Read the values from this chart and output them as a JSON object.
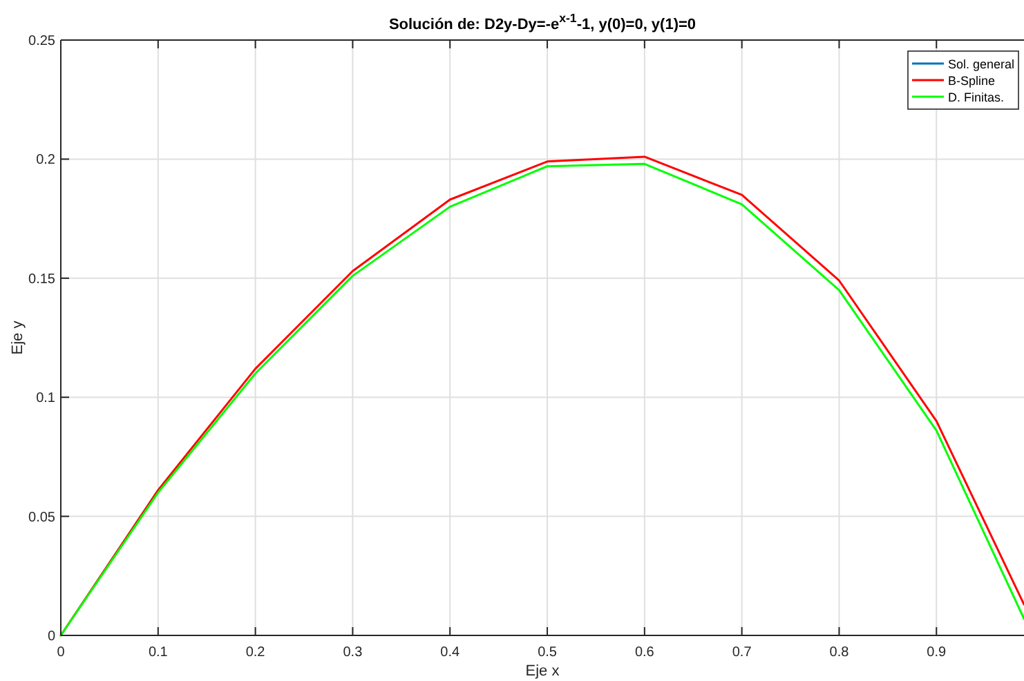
{
  "chart_data": {
    "type": "line",
    "title": "Solución de: D2y-Dy=-e$^{x-1}$-1, y(0)=0, y(1)=0",
    "xlabel": "Eje x",
    "ylabel": "Eje y",
    "x": [
      0,
      0.1,
      0.2,
      0.3,
      0.4,
      0.5,
      0.6,
      0.7,
      0.8,
      0.9,
      0.99
    ],
    "series": [
      {
        "name": "Sol. general",
        "color": "#0072bd",
        "values": [
          null,
          null,
          null,
          null,
          null,
          null,
          null,
          null,
          null,
          null,
          null
        ]
      },
      {
        "name": "B-Spline",
        "color": "#ff0000",
        "values": [
          0,
          0.061,
          0.112,
          0.153,
          0.183,
          0.199,
          0.201,
          0.185,
          0.149,
          0.09,
          0.013
        ]
      },
      {
        "name": "D. Finitas.",
        "color": "#00ff00",
        "values": [
          0,
          0.06,
          0.11,
          0.151,
          0.18,
          0.197,
          0.198,
          0.181,
          0.145,
          0.086,
          0.007
        ]
      }
    ],
    "xlim": [
      0,
      0.99
    ],
    "xticks": [
      0,
      0.1,
      0.2,
      0.3,
      0.4,
      0.5,
      0.6,
      0.7,
      0.8,
      0.9
    ],
    "ylim": [
      0,
      0.25
    ],
    "yticks": [
      0,
      0.05,
      0.1,
      0.15,
      0.2,
      0.25
    ],
    "grid": true,
    "legend": "top right",
    "line_style": "solid"
  }
}
